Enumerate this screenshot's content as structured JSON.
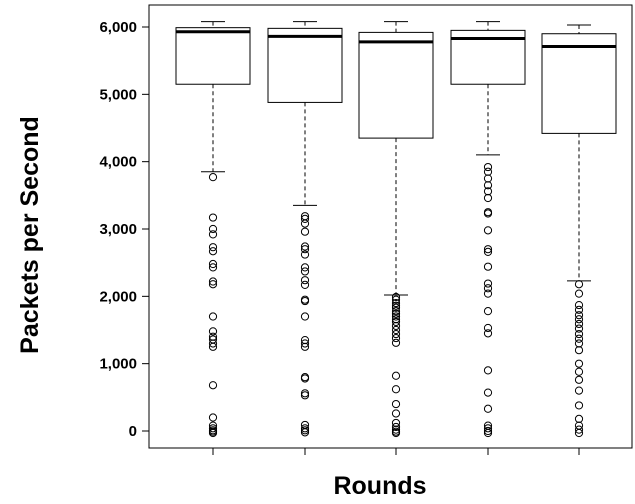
{
  "chart_data": {
    "type": "boxplot",
    "title": "",
    "xlabel": "Rounds",
    "ylabel": "Packets per Second",
    "ylim": [
      -250,
      6300
    ],
    "y_ticks": [
      0,
      1000,
      2000,
      3000,
      4000,
      5000,
      6000
    ],
    "y_tick_labels": [
      "0",
      "1,000",
      "2,000",
      "3,000",
      "4,000",
      "5,000",
      "6,000"
    ],
    "x_tick_labels": [],
    "grid": false,
    "boxes": [
      {
        "whisker_low": 3850,
        "q1": 5150,
        "median": 5930,
        "q3": 5990,
        "whisker_high": 6080,
        "outliers": [
          3770,
          3170,
          3000,
          2920,
          2730,
          2670,
          2480,
          2430,
          2220,
          2180,
          1700,
          1480,
          1400,
          1360,
          1300,
          1250,
          680,
          200,
          80,
          40,
          10,
          -10,
          -30
        ]
      },
      {
        "whisker_low": 3350,
        "q1": 4880,
        "median": 5860,
        "q3": 5980,
        "whisker_high": 6080,
        "outliers": [
          3190,
          3150,
          3080,
          2960,
          2740,
          2700,
          2620,
          2430,
          2370,
          2240,
          2170,
          1950,
          1930,
          1700,
          1350,
          1300,
          1250,
          800,
          780,
          560,
          530,
          90,
          40,
          10,
          -20
        ]
      },
      {
        "whisker_low": 2020,
        "q1": 4350,
        "median": 5780,
        "q3": 5920,
        "whisker_high": 6080,
        "outliers": [
          1990,
          1950,
          1900,
          1860,
          1830,
          1780,
          1740,
          1700,
          1660,
          1620,
          1560,
          1500,
          1440,
          1380,
          1310,
          820,
          620,
          400,
          260,
          120,
          60,
          20,
          -10,
          -30
        ]
      },
      {
        "whisker_low": 4100,
        "q1": 5150,
        "median": 5830,
        "q3": 5950,
        "whisker_high": 6080,
        "outliers": [
          3920,
          3850,
          3750,
          3650,
          3560,
          3460,
          3250,
          3230,
          2980,
          2700,
          2660,
          2440,
          2190,
          2120,
          2040,
          1780,
          1530,
          1450,
          900,
          570,
          330,
          80,
          40,
          0,
          -30
        ]
      },
      {
        "whisker_low": 2230,
        "q1": 4420,
        "median": 5710,
        "q3": 5900,
        "whisker_high": 6030,
        "outliers": [
          2180,
          2040,
          1870,
          1800,
          1720,
          1660,
          1590,
          1520,
          1440,
          1370,
          1300,
          1200,
          1000,
          880,
          760,
          600,
          380,
          180,
          80,
          20,
          -30
        ]
      }
    ]
  }
}
